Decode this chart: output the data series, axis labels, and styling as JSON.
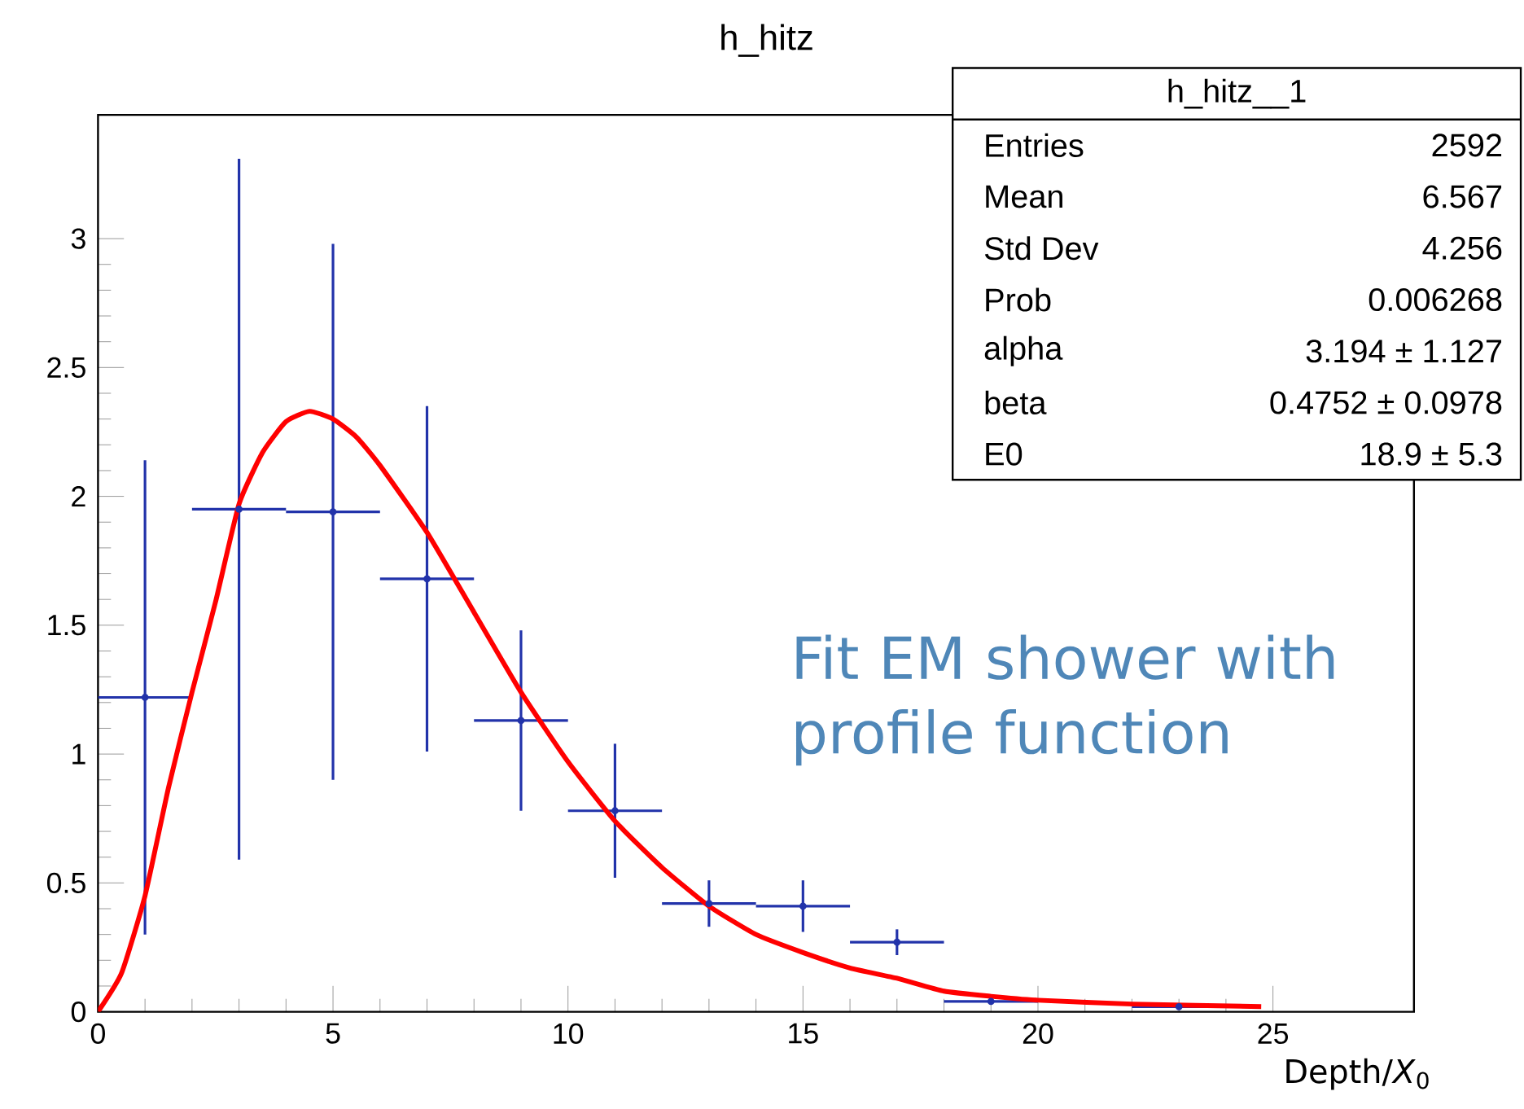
{
  "chart_data": {
    "type": "scatter",
    "title": "h_hitz",
    "xlabel": "Depth/*X*$_{0}$",
    "xlim": [
      0,
      28
    ],
    "ylim": [
      0,
      3.48
    ],
    "xticks": [
      0,
      5,
      10,
      15,
      20,
      25
    ],
    "yticks": [
      0,
      0.5,
      1,
      1.5,
      2,
      2.5,
      3
    ],
    "marker": "none",
    "series": [
      {
        "color": "#2233aa",
        "x": [
          1,
          3,
          5,
          7,
          9,
          11,
          13,
          15,
          17,
          19,
          23
        ],
        "values": [
          1.22,
          1.95,
          1.94,
          1.68,
          1.13,
          0.78,
          0.42,
          0.41,
          0.27,
          0.04,
          0.02
        ],
        "errors": [
          0.92,
          1.36,
          1.04,
          0.67,
          0.35,
          0.26,
          0.09,
          0.1,
          0.05,
          null,
          null
        ],
        "xerrors": [
          1,
          1,
          1,
          1,
          1,
          1,
          1,
          1,
          1,
          1,
          1
        ]
      },
      {
        "type": "line",
        "color": "#ff0000",
        "x": [
          0,
          0.5,
          1,
          1.5,
          2,
          2.5,
          3,
          3.5,
          4,
          4.5,
          5,
          5.5,
          6,
          7,
          8,
          9,
          10,
          11,
          12,
          13,
          14,
          15,
          16,
          17,
          18,
          19,
          20,
          22,
          24.75
        ],
        "values": [
          0,
          0.15,
          0.45,
          0.87,
          1.24,
          1.59,
          1.97,
          2.17,
          2.29,
          2.33,
          2.3,
          2.23,
          2.12,
          1.86,
          1.55,
          1.24,
          0.97,
          0.74,
          0.56,
          0.41,
          0.3,
          0.23,
          0.17,
          0.13,
          0.08,
          0.06,
          0.045,
          0.03,
          0.02
        ]
      }
    ],
    "annotations": [
      "h_hitz__1",
      "Entries",
      "2592",
      "Mean",
      "6.567",
      "Std Dev",
      "4.256",
      "Prob",
      "0.006268",
      "alpha",
      "3.194 ± 1.127",
      "beta",
      "0.4752 ± 0.0978",
      "E0",
      "18.9 ± 5.3",
      "Fit EM shower with profile function"
    ]
  }
}
